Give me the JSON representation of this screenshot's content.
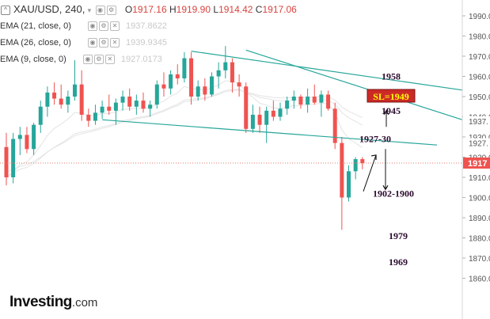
{
  "header": {
    "symbol": "XAU/USD, 240,",
    "ohlc": [
      {
        "label": "O",
        "value": "1917.16"
      },
      {
        "label": "H",
        "value": "1919.90"
      },
      {
        "label": "L",
        "value": "1914.42"
      },
      {
        "label": "C",
        "value": "1917.06"
      }
    ],
    "indicators": [
      {
        "label": "EMA (21, close, 0)",
        "value": "1937.8622"
      },
      {
        "label": "EMA (26, close, 0)",
        "value": "1939.9345"
      },
      {
        "label": "EMA (9, close, 0)",
        "value": "1927.0173"
      }
    ]
  },
  "logo": {
    "main": "Investing",
    "suffix": ".com"
  },
  "colors": {
    "up": "#26a69a",
    "down": "#ef5350",
    "trendline": "#26a69a",
    "price_tag": "#ef5350",
    "sl_box": "#cc2a27",
    "sl_text": "#ffff00",
    "annotation_text": "#2b0a2e",
    "ema_lines": "#e4e4e4"
  },
  "chart_data": {
    "type": "candlestick",
    "timeframe": "240",
    "ylim": [
      1855,
      1997
    ],
    "yticks": [
      1860,
      1870,
      1880,
      1890,
      1900,
      1910,
      1920,
      1930,
      1940,
      1950,
      1960,
      1970,
      1980,
      1990
    ],
    "y_tick_labels_partial": [
      "1937.",
      "1927.",
      "1917"
    ],
    "last_price_label": "1917",
    "last_price": 1917.06,
    "candles": [
      {
        "o": 1925,
        "h": 1932,
        "l": 1906,
        "c": 1910
      },
      {
        "o": 1910,
        "h": 1932,
        "l": 1907,
        "c": 1929
      },
      {
        "o": 1929,
        "h": 1935,
        "l": 1921,
        "c": 1931
      },
      {
        "o": 1931,
        "h": 1935,
        "l": 1922,
        "c": 1924
      },
      {
        "o": 1924,
        "h": 1937,
        "l": 1921,
        "c": 1936
      },
      {
        "o": 1936,
        "h": 1948,
        "l": 1932,
        "c": 1945
      },
      {
        "o": 1945,
        "h": 1955,
        "l": 1940,
        "c": 1952
      },
      {
        "o": 1952,
        "h": 1957,
        "l": 1946,
        "c": 1949
      },
      {
        "o": 1949,
        "h": 1956,
        "l": 1944,
        "c": 1946
      },
      {
        "o": 1946,
        "h": 1953,
        "l": 1942,
        "c": 1950
      },
      {
        "o": 1950,
        "h": 1968,
        "l": 1948,
        "c": 1956
      },
      {
        "o": 1956,
        "h": 1963,
        "l": 1938,
        "c": 1941
      },
      {
        "o": 1941,
        "h": 1944,
        "l": 1935,
        "c": 1938
      },
      {
        "o": 1938,
        "h": 1946,
        "l": 1936,
        "c": 1942
      },
      {
        "o": 1942,
        "h": 1948,
        "l": 1939,
        "c": 1945
      },
      {
        "o": 1945,
        "h": 1951,
        "l": 1941,
        "c": 1943
      },
      {
        "o": 1943,
        "h": 1949,
        "l": 1936,
        "c": 1947
      },
      {
        "o": 1947,
        "h": 1953,
        "l": 1943,
        "c": 1950
      },
      {
        "o": 1950,
        "h": 1954,
        "l": 1943,
        "c": 1945
      },
      {
        "o": 1945,
        "h": 1951,
        "l": 1941,
        "c": 1948
      },
      {
        "o": 1948,
        "h": 1952,
        "l": 1942,
        "c": 1944
      },
      {
        "o": 1944,
        "h": 1948,
        "l": 1940,
        "c": 1946
      },
      {
        "o": 1946,
        "h": 1958,
        "l": 1944,
        "c": 1956
      },
      {
        "o": 1956,
        "h": 1962,
        "l": 1950,
        "c": 1954
      },
      {
        "o": 1954,
        "h": 1963,
        "l": 1951,
        "c": 1961
      },
      {
        "o": 1961,
        "h": 1966,
        "l": 1956,
        "c": 1959
      },
      {
        "o": 1959,
        "h": 1972,
        "l": 1957,
        "c": 1969
      },
      {
        "o": 1969,
        "h": 1972,
        "l": 1946,
        "c": 1950
      },
      {
        "o": 1950,
        "h": 1958,
        "l": 1948,
        "c": 1955
      },
      {
        "o": 1955,
        "h": 1959,
        "l": 1948,
        "c": 1951
      },
      {
        "o": 1951,
        "h": 1962,
        "l": 1950,
        "c": 1960
      },
      {
        "o": 1960,
        "h": 1967,
        "l": 1954,
        "c": 1963
      },
      {
        "o": 1963,
        "h": 1975,
        "l": 1959,
        "c": 1967
      },
      {
        "o": 1967,
        "h": 1969,
        "l": 1952,
        "c": 1957
      },
      {
        "o": 1957,
        "h": 1961,
        "l": 1950,
        "c": 1955
      },
      {
        "o": 1955,
        "h": 1957,
        "l": 1932,
        "c": 1934
      },
      {
        "o": 1934,
        "h": 1946,
        "l": 1932,
        "c": 1941
      },
      {
        "o": 1941,
        "h": 1945,
        "l": 1932,
        "c": 1936
      },
      {
        "o": 1936,
        "h": 1945,
        "l": 1927,
        "c": 1943
      },
      {
        "o": 1943,
        "h": 1948,
        "l": 1938,
        "c": 1940
      },
      {
        "o": 1940,
        "h": 1947,
        "l": 1938,
        "c": 1944
      },
      {
        "o": 1944,
        "h": 1950,
        "l": 1941,
        "c": 1948
      },
      {
        "o": 1948,
        "h": 1953,
        "l": 1944,
        "c": 1950
      },
      {
        "o": 1950,
        "h": 1951,
        "l": 1944,
        "c": 1946
      },
      {
        "o": 1946,
        "h": 1954,
        "l": 1942,
        "c": 1950
      },
      {
        "o": 1950,
        "h": 1956,
        "l": 1946,
        "c": 1947
      },
      {
        "o": 1947,
        "h": 1953,
        "l": 1940,
        "c": 1951
      },
      {
        "o": 1951,
        "h": 1953,
        "l": 1943,
        "c": 1944
      },
      {
        "o": 1944,
        "h": 1947,
        "l": 1924,
        "c": 1927
      },
      {
        "o": 1927,
        "h": 1930,
        "l": 1884,
        "c": 1900
      },
      {
        "o": 1900,
        "h": 1916,
        "l": 1898,
        "c": 1913
      },
      {
        "o": 1913,
        "h": 1920,
        "l": 1909,
        "c": 1919
      },
      {
        "o": 1919,
        "h": 1920,
        "l": 1914,
        "c": 1917
      }
    ],
    "annotations": [
      {
        "text": "1958",
        "price": 1960
      },
      {
        "text": "SL=1949",
        "price": 1950
      },
      {
        "text": "1945",
        "price": 1943
      },
      {
        "text": "1927-30",
        "price": 1929
      },
      {
        "text": "1902-1900",
        "price": 1902
      },
      {
        "text": "1979",
        "price": 1881
      },
      {
        "text": "1969",
        "price": 1868
      }
    ]
  }
}
